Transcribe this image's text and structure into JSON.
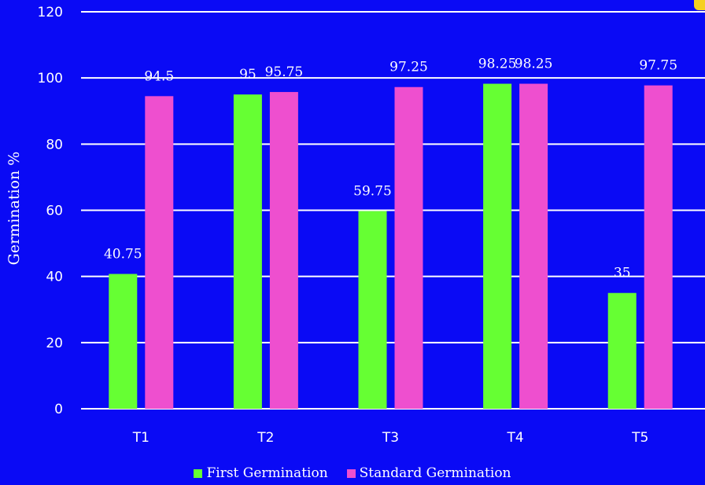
{
  "chart_data": {
    "type": "bar",
    "categories": [
      "T1",
      "T2",
      "T3",
      "T4",
      "T5"
    ],
    "series": [
      {
        "name": "First Germination",
        "values": [
          40.75,
          95,
          59.75,
          98.25,
          35
        ],
        "color": "#66ff33"
      },
      {
        "name": "Standard Germination",
        "values": [
          94.5,
          95.75,
          97.25,
          98.25,
          97.75
        ],
        "color": "#ee4fcf"
      }
    ],
    "data_labels": [
      [
        "40.75",
        "95",
        "59.75",
        "98.25",
        "35"
      ],
      [
        "94.5",
        "95.75",
        "97.25",
        "98.25",
        "97.75"
      ]
    ],
    "title": "",
    "xlabel": "",
    "ylabel": "Germination %",
    "ylim": [
      0,
      120
    ],
    "yticks": [
      0,
      20,
      40,
      60,
      80,
      100,
      120
    ],
    "grid": true,
    "legend_position": "bottom",
    "background_color": "#0a0af5",
    "grid_color": "#ffffff"
  }
}
